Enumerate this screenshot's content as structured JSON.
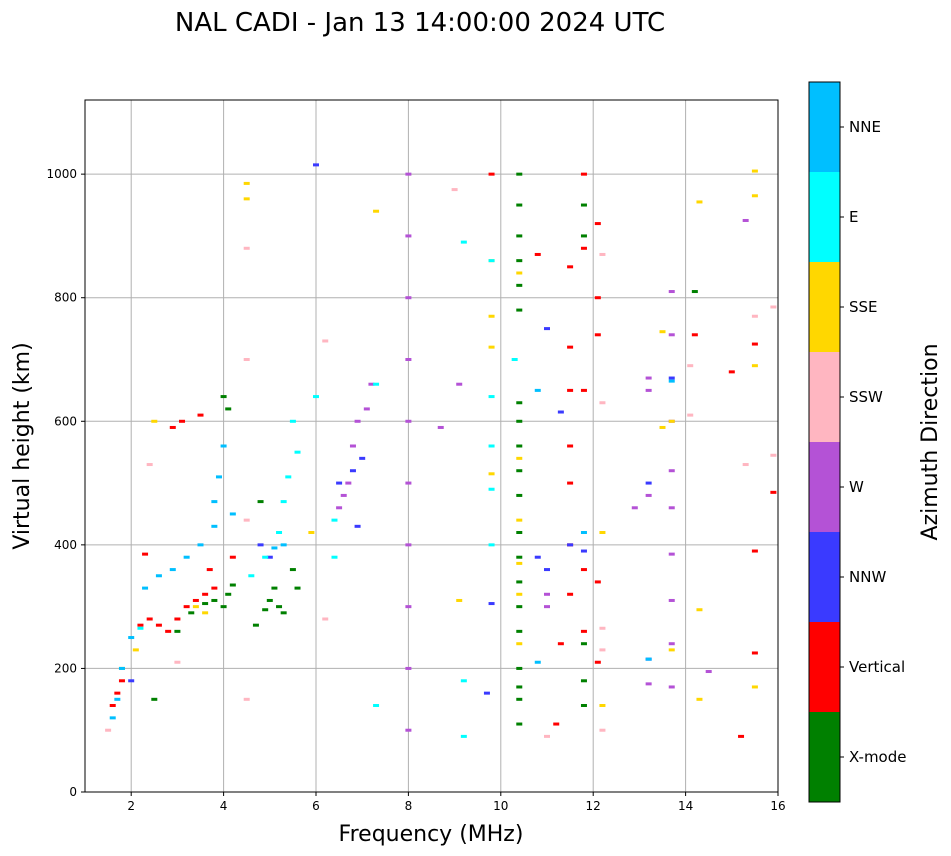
{
  "chart_data": {
    "type": "scatter",
    "title": "NAL CADI - Jan 13 14:00:00 2024 UTC",
    "xlabel": "Frequency (MHz)",
    "ylabel": "Virtual height (km)",
    "xlim": [
      1,
      16
    ],
    "ylim": [
      0,
      1120
    ],
    "xticks": [
      2,
      4,
      6,
      8,
      10,
      12,
      14,
      16
    ],
    "yticks": [
      0,
      200,
      400,
      600,
      800,
      1000
    ],
    "grid": true,
    "colorbar": {
      "label": "Azimuth Direction",
      "categories": [
        {
          "name": "X-mode",
          "color": "#008000"
        },
        {
          "name": "Vertical",
          "color": "#ff0000"
        },
        {
          "name": "NNW",
          "color": "#3a3aff"
        },
        {
          "name": "W",
          "color": "#b452d6"
        },
        {
          "name": "SSW",
          "color": "#ffb6c1"
        },
        {
          "name": "SSE",
          "color": "#ffd700"
        },
        {
          "name": "E",
          "color": "#00ffff"
        },
        {
          "name": "NNE",
          "color": "#00bfff"
        }
      ]
    },
    "series": [
      {
        "name": "X-mode",
        "color": "#008000",
        "points": [
          [
            2.5,
            150
          ],
          [
            3.0,
            260
          ],
          [
            3.3,
            290
          ],
          [
            3.6,
            305
          ],
          [
            3.8,
            310
          ],
          [
            4.0,
            300
          ],
          [
            4.1,
            320
          ],
          [
            4.2,
            335
          ],
          [
            4.0,
            640
          ],
          [
            4.1,
            620
          ],
          [
            4.7,
            270
          ],
          [
            4.9,
            295
          ],
          [
            5.0,
            310
          ],
          [
            5.1,
            330
          ],
          [
            5.2,
            300
          ],
          [
            5.3,
            290
          ],
          [
            5.5,
            360
          ],
          [
            5.6,
            330
          ],
          [
            4.8,
            470
          ],
          [
            10.4,
            110
          ],
          [
            10.4,
            150
          ],
          [
            10.4,
            170
          ],
          [
            10.4,
            200
          ],
          [
            10.4,
            260
          ],
          [
            10.4,
            300
          ],
          [
            10.4,
            340
          ],
          [
            10.4,
            380
          ],
          [
            10.4,
            420
          ],
          [
            10.4,
            480
          ],
          [
            10.4,
            520
          ],
          [
            10.4,
            560
          ],
          [
            10.4,
            600
          ],
          [
            10.4,
            630
          ],
          [
            10.4,
            780
          ],
          [
            10.4,
            820
          ],
          [
            10.4,
            860
          ],
          [
            10.4,
            900
          ],
          [
            10.4,
            950
          ],
          [
            10.4,
            1000
          ],
          [
            11.8,
            140
          ],
          [
            11.8,
            180
          ],
          [
            11.8,
            240
          ],
          [
            11.8,
            900
          ],
          [
            11.8,
            950
          ],
          [
            14.2,
            810
          ]
        ]
      },
      {
        "name": "Vertical",
        "color": "#ff0000",
        "points": [
          [
            1.6,
            140
          ],
          [
            1.7,
            160
          ],
          [
            1.8,
            180
          ],
          [
            2.2,
            270
          ],
          [
            2.3,
            385
          ],
          [
            2.4,
            280
          ],
          [
            2.6,
            270
          ],
          [
            2.8,
            260
          ],
          [
            3.0,
            280
          ],
          [
            3.2,
            300
          ],
          [
            3.4,
            310
          ],
          [
            3.6,
            320
          ],
          [
            3.8,
            330
          ],
          [
            3.7,
            360
          ],
          [
            4.2,
            380
          ],
          [
            3.1,
            600
          ],
          [
            3.5,
            610
          ],
          [
            2.9,
            590
          ],
          [
            9.8,
            1000
          ],
          [
            10.8,
            870
          ],
          [
            11.2,
            110
          ],
          [
            11.3,
            240
          ],
          [
            11.5,
            320
          ],
          [
            11.5,
            400
          ],
          [
            11.5,
            500
          ],
          [
            11.5,
            560
          ],
          [
            11.5,
            650
          ],
          [
            11.5,
            720
          ],
          [
            11.5,
            850
          ],
          [
            11.8,
            260
          ],
          [
            11.8,
            360
          ],
          [
            11.8,
            650
          ],
          [
            11.8,
            880
          ],
          [
            11.8,
            1000
          ],
          [
            12.1,
            340
          ],
          [
            12.1,
            800
          ],
          [
            12.1,
            920
          ],
          [
            12.1,
            740
          ],
          [
            12.1,
            210
          ],
          [
            14.2,
            740
          ],
          [
            15.2,
            90
          ],
          [
            15.5,
            390
          ],
          [
            15.5,
            725
          ],
          [
            15.5,
            225
          ],
          [
            15.9,
            485
          ],
          [
            15.0,
            680
          ]
        ]
      },
      {
        "name": "NNW",
        "color": "#3a3aff",
        "points": [
          [
            2.0,
            180
          ],
          [
            4.8,
            400
          ],
          [
            5.0,
            380
          ],
          [
            6.5,
            500
          ],
          [
            6.8,
            520
          ],
          [
            7.0,
            540
          ],
          [
            6.9,
            430
          ],
          [
            9.7,
            160
          ],
          [
            9.8,
            305
          ],
          [
            10.8,
            380
          ],
          [
            11.0,
            750
          ],
          [
            11.0,
            360
          ],
          [
            11.5,
            400
          ],
          [
            11.3,
            615
          ],
          [
            11.8,
            390
          ],
          [
            13.2,
            500
          ],
          [
            13.2,
            215
          ],
          [
            13.7,
            670
          ],
          [
            6.0,
            1015
          ]
        ]
      },
      {
        "name": "W",
        "color": "#b452d6",
        "points": [
          [
            6.5,
            460
          ],
          [
            6.6,
            480
          ],
          [
            6.7,
            500
          ],
          [
            6.8,
            560
          ],
          [
            6.9,
            600
          ],
          [
            7.1,
            620
          ],
          [
            7.2,
            660
          ],
          [
            8.0,
            100
          ],
          [
            8.0,
            200
          ],
          [
            8.0,
            300
          ],
          [
            8.0,
            400
          ],
          [
            8.0,
            500
          ],
          [
            8.0,
            600
          ],
          [
            8.0,
            700
          ],
          [
            8.0,
            800
          ],
          [
            8.0,
            900
          ],
          [
            8.0,
            1000
          ],
          [
            8.7,
            590
          ],
          [
            9.1,
            660
          ],
          [
            11.0,
            300
          ],
          [
            11.0,
            320
          ],
          [
            12.9,
            460
          ],
          [
            13.2,
            480
          ],
          [
            13.2,
            670
          ],
          [
            13.2,
            650
          ],
          [
            13.2,
            175
          ],
          [
            13.7,
            170
          ],
          [
            13.7,
            240
          ],
          [
            13.7,
            310
          ],
          [
            13.7,
            385
          ],
          [
            13.7,
            460
          ],
          [
            13.7,
            520
          ],
          [
            13.7,
            600
          ],
          [
            13.7,
            740
          ],
          [
            13.7,
            810
          ],
          [
            15.3,
            925
          ],
          [
            14.5,
            195
          ]
        ]
      },
      {
        "name": "SSW",
        "color": "#ffb6c1",
        "points": [
          [
            1.5,
            100
          ],
          [
            2.4,
            530
          ],
          [
            3.0,
            210
          ],
          [
            4.5,
            150
          ],
          [
            4.5,
            440
          ],
          [
            4.5,
            700
          ],
          [
            4.5,
            880
          ],
          [
            6.2,
            730
          ],
          [
            6.2,
            280
          ],
          [
            9.0,
            975
          ],
          [
            11.0,
            90
          ],
          [
            12.2,
            100
          ],
          [
            12.2,
            230
          ],
          [
            12.2,
            265
          ],
          [
            12.2,
            630
          ],
          [
            12.2,
            870
          ],
          [
            14.1,
            610
          ],
          [
            14.1,
            690
          ],
          [
            15.3,
            530
          ],
          [
            15.9,
            545
          ],
          [
            15.9,
            785
          ],
          [
            15.5,
            770
          ]
        ]
      },
      {
        "name": "SSE",
        "color": "#ffd700",
        "points": [
          [
            1.8,
            200
          ],
          [
            2.1,
            230
          ],
          [
            2.5,
            600
          ],
          [
            3.4,
            300
          ],
          [
            3.6,
            290
          ],
          [
            4.5,
            960
          ],
          [
            4.5,
            985
          ],
          [
            5.9,
            420
          ],
          [
            7.3,
            940
          ],
          [
            9.1,
            310
          ],
          [
            9.8,
            515
          ],
          [
            9.8,
            720
          ],
          [
            9.8,
            770
          ],
          [
            9.8,
            860
          ],
          [
            10.4,
            240
          ],
          [
            10.4,
            320
          ],
          [
            10.4,
            370
          ],
          [
            10.4,
            440
          ],
          [
            10.4,
            540
          ],
          [
            10.4,
            840
          ],
          [
            12.2,
            420
          ],
          [
            12.2,
            140
          ],
          [
            13.5,
            590
          ],
          [
            13.5,
            745
          ],
          [
            13.7,
            600
          ],
          [
            13.7,
            230
          ],
          [
            14.3,
            295
          ],
          [
            14.3,
            150
          ],
          [
            14.3,
            955
          ],
          [
            15.5,
            170
          ],
          [
            15.5,
            690
          ],
          [
            15.5,
            965
          ],
          [
            15.5,
            1005
          ]
        ]
      },
      {
        "name": "E",
        "color": "#00ffff",
        "points": [
          [
            2.2,
            265
          ],
          [
            4.6,
            350
          ],
          [
            4.9,
            380
          ],
          [
            5.2,
            420
          ],
          [
            5.3,
            470
          ],
          [
            5.4,
            510
          ],
          [
            5.6,
            550
          ],
          [
            5.5,
            600
          ],
          [
            6.0,
            640
          ],
          [
            6.4,
            380
          ],
          [
            6.4,
            440
          ],
          [
            9.2,
            180
          ],
          [
            9.2,
            90
          ],
          [
            9.2,
            890
          ],
          [
            9.8,
            400
          ],
          [
            9.8,
            490
          ],
          [
            9.8,
            560
          ],
          [
            9.8,
            640
          ],
          [
            9.8,
            860
          ],
          [
            10.3,
            700
          ],
          [
            7.3,
            140
          ],
          [
            7.3,
            660
          ]
        ]
      },
      {
        "name": "NNE",
        "color": "#00bfff",
        "points": [
          [
            1.6,
            120
          ],
          [
            1.7,
            150
          ],
          [
            1.8,
            200
          ],
          [
            2.0,
            250
          ],
          [
            2.3,
            330
          ],
          [
            2.6,
            350
          ],
          [
            2.9,
            360
          ],
          [
            3.2,
            380
          ],
          [
            3.5,
            400
          ],
          [
            3.8,
            430
          ],
          [
            3.8,
            470
          ],
          [
            3.9,
            510
          ],
          [
            4.0,
            560
          ],
          [
            4.2,
            450
          ],
          [
            5.1,
            395
          ],
          [
            5.3,
            400
          ],
          [
            10.8,
            210
          ],
          [
            10.8,
            650
          ],
          [
            11.8,
            420
          ],
          [
            13.7,
            665
          ],
          [
            13.2,
            215
          ]
        ]
      }
    ]
  }
}
